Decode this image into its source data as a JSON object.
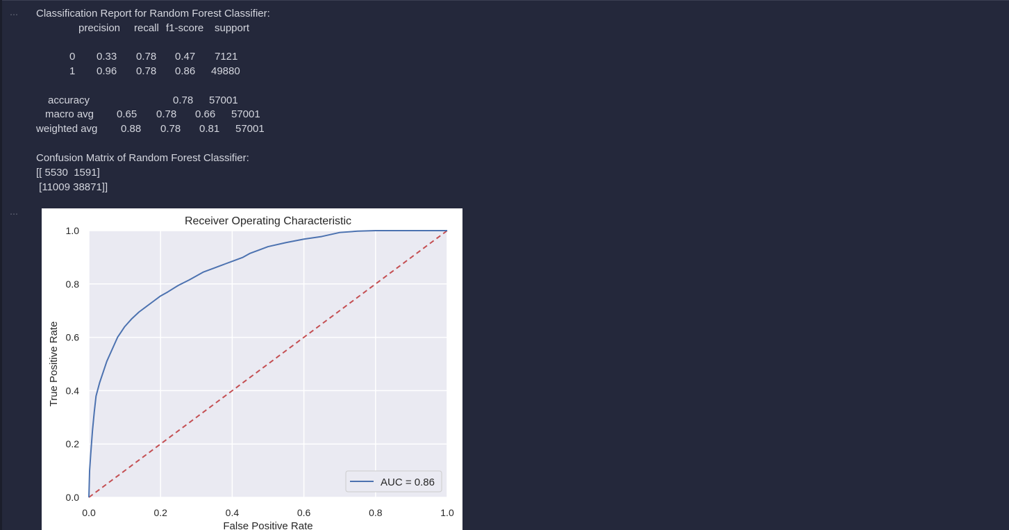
{
  "cell1": {
    "prompt": "…",
    "report_title": "Classification Report for Random Forest Classifier:",
    "headers": [
      "precision",
      "recall",
      "f1-score",
      "support"
    ],
    "rows": [
      {
        "label": "0",
        "precision": "0.33",
        "recall": "0.78",
        "f1": "0.47",
        "support": "7121"
      },
      {
        "label": "1",
        "precision": "0.96",
        "recall": "0.78",
        "f1": "0.86",
        "support": "49880"
      }
    ],
    "accuracy": {
      "label": "accuracy",
      "f1": "0.78",
      "support": "57001"
    },
    "macro": {
      "label": "macro avg",
      "precision": "0.65",
      "recall": "0.78",
      "f1": "0.66",
      "support": "57001"
    },
    "weighted": {
      "label": "weighted avg",
      "precision": "0.88",
      "recall": "0.78",
      "f1": "0.81",
      "support": "57001"
    },
    "confusion_title": "Confusion Matrix of Random Forest Classifier:",
    "confusion_line1": "[[ 5530  1591]",
    "confusion_line2": " [11009 38871]]"
  },
  "cell2": {
    "prompt": "…"
  },
  "chart_data": {
    "type": "line",
    "title": "Receiver Operating Characteristic",
    "xlabel": "False Positive Rate",
    "ylabel": "True Positive Rate",
    "xlim": [
      0,
      1
    ],
    "ylim": [
      0,
      1
    ],
    "xticks": [
      "0.0",
      "0.2",
      "0.4",
      "0.6",
      "0.8",
      "1.0"
    ],
    "yticks": [
      "0.0",
      "0.2",
      "0.4",
      "0.6",
      "0.8",
      "1.0"
    ],
    "grid": true,
    "legend_position": "lower right",
    "series": [
      {
        "name": "AUC = 0.86",
        "color": "#4c72b0",
        "style": "solid",
        "x": [
          0,
          0.002,
          0.005,
          0.01,
          0.015,
          0.02,
          0.03,
          0.04,
          0.05,
          0.06,
          0.07,
          0.08,
          0.09,
          0.1,
          0.12,
          0.14,
          0.16,
          0.18,
          0.2,
          0.22,
          0.25,
          0.28,
          0.3,
          0.32,
          0.35,
          0.38,
          0.4,
          0.43,
          0.45,
          0.48,
          0.5,
          0.55,
          0.6,
          0.65,
          0.7,
          0.75,
          0.8,
          0.85,
          0.9,
          1.0
        ],
        "y": [
          0,
          0.1,
          0.16,
          0.25,
          0.32,
          0.38,
          0.43,
          0.47,
          0.51,
          0.54,
          0.57,
          0.6,
          0.62,
          0.64,
          0.67,
          0.695,
          0.715,
          0.735,
          0.755,
          0.77,
          0.795,
          0.815,
          0.83,
          0.845,
          0.86,
          0.875,
          0.885,
          0.9,
          0.915,
          0.93,
          0.94,
          0.955,
          0.968,
          0.978,
          0.993,
          0.998,
          1.0,
          1.0,
          1.0,
          1.0
        ]
      },
      {
        "name": "",
        "color": "#c44e52",
        "style": "dashed",
        "x": [
          0,
          1
        ],
        "y": [
          0,
          1
        ]
      }
    ],
    "colors": {
      "plot_bg": "#eaeaf2",
      "grid": "#ffffff",
      "text": "#262626"
    }
  }
}
